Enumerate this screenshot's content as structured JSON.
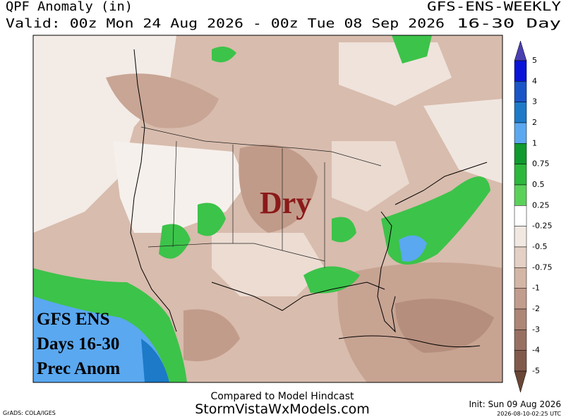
{
  "header": {
    "title": "QPF Anomaly (in)",
    "model": "GFS-ENS-WEEKLY",
    "valid": "Valid: 00z Mon 24 Aug 2026 - 00z Tue 08 Sep 2026",
    "range": "16-30 Day"
  },
  "map": {
    "annotation": "Dry",
    "label_lines": [
      "GFS ENS",
      "Days 16-30",
      "Prec Anom"
    ]
  },
  "colorbar": {
    "labels": [
      "5",
      "4",
      "3",
      "2",
      "1",
      "0.75",
      "0.5",
      "0.25",
      "-0.25",
      "-0.5",
      "-0.75",
      "-1",
      "-2",
      "-3",
      "-4",
      "-5"
    ],
    "colors": [
      "#4a3fb0",
      "#0a14d8",
      "#1a55c8",
      "#1c7ac8",
      "#5aa8f0",
      "#0e9a2e",
      "#2bb83c",
      "#5ad25a",
      "#ffffff",
      "#f2e8e2",
      "#e4d0c4",
      "#d4b6a6",
      "#c29c8c",
      "#ae8676",
      "#987062",
      "#825a4c",
      "#6a4636"
    ]
  },
  "footer": {
    "note": "Compared to Model Hindcast",
    "site": "StormVistaWxModels.com",
    "init": "Init: Sun 09 Aug 2026",
    "timestamp": "2026-08-10-02:25 UTC",
    "credit": "GrADS: COLA/IGES"
  }
}
